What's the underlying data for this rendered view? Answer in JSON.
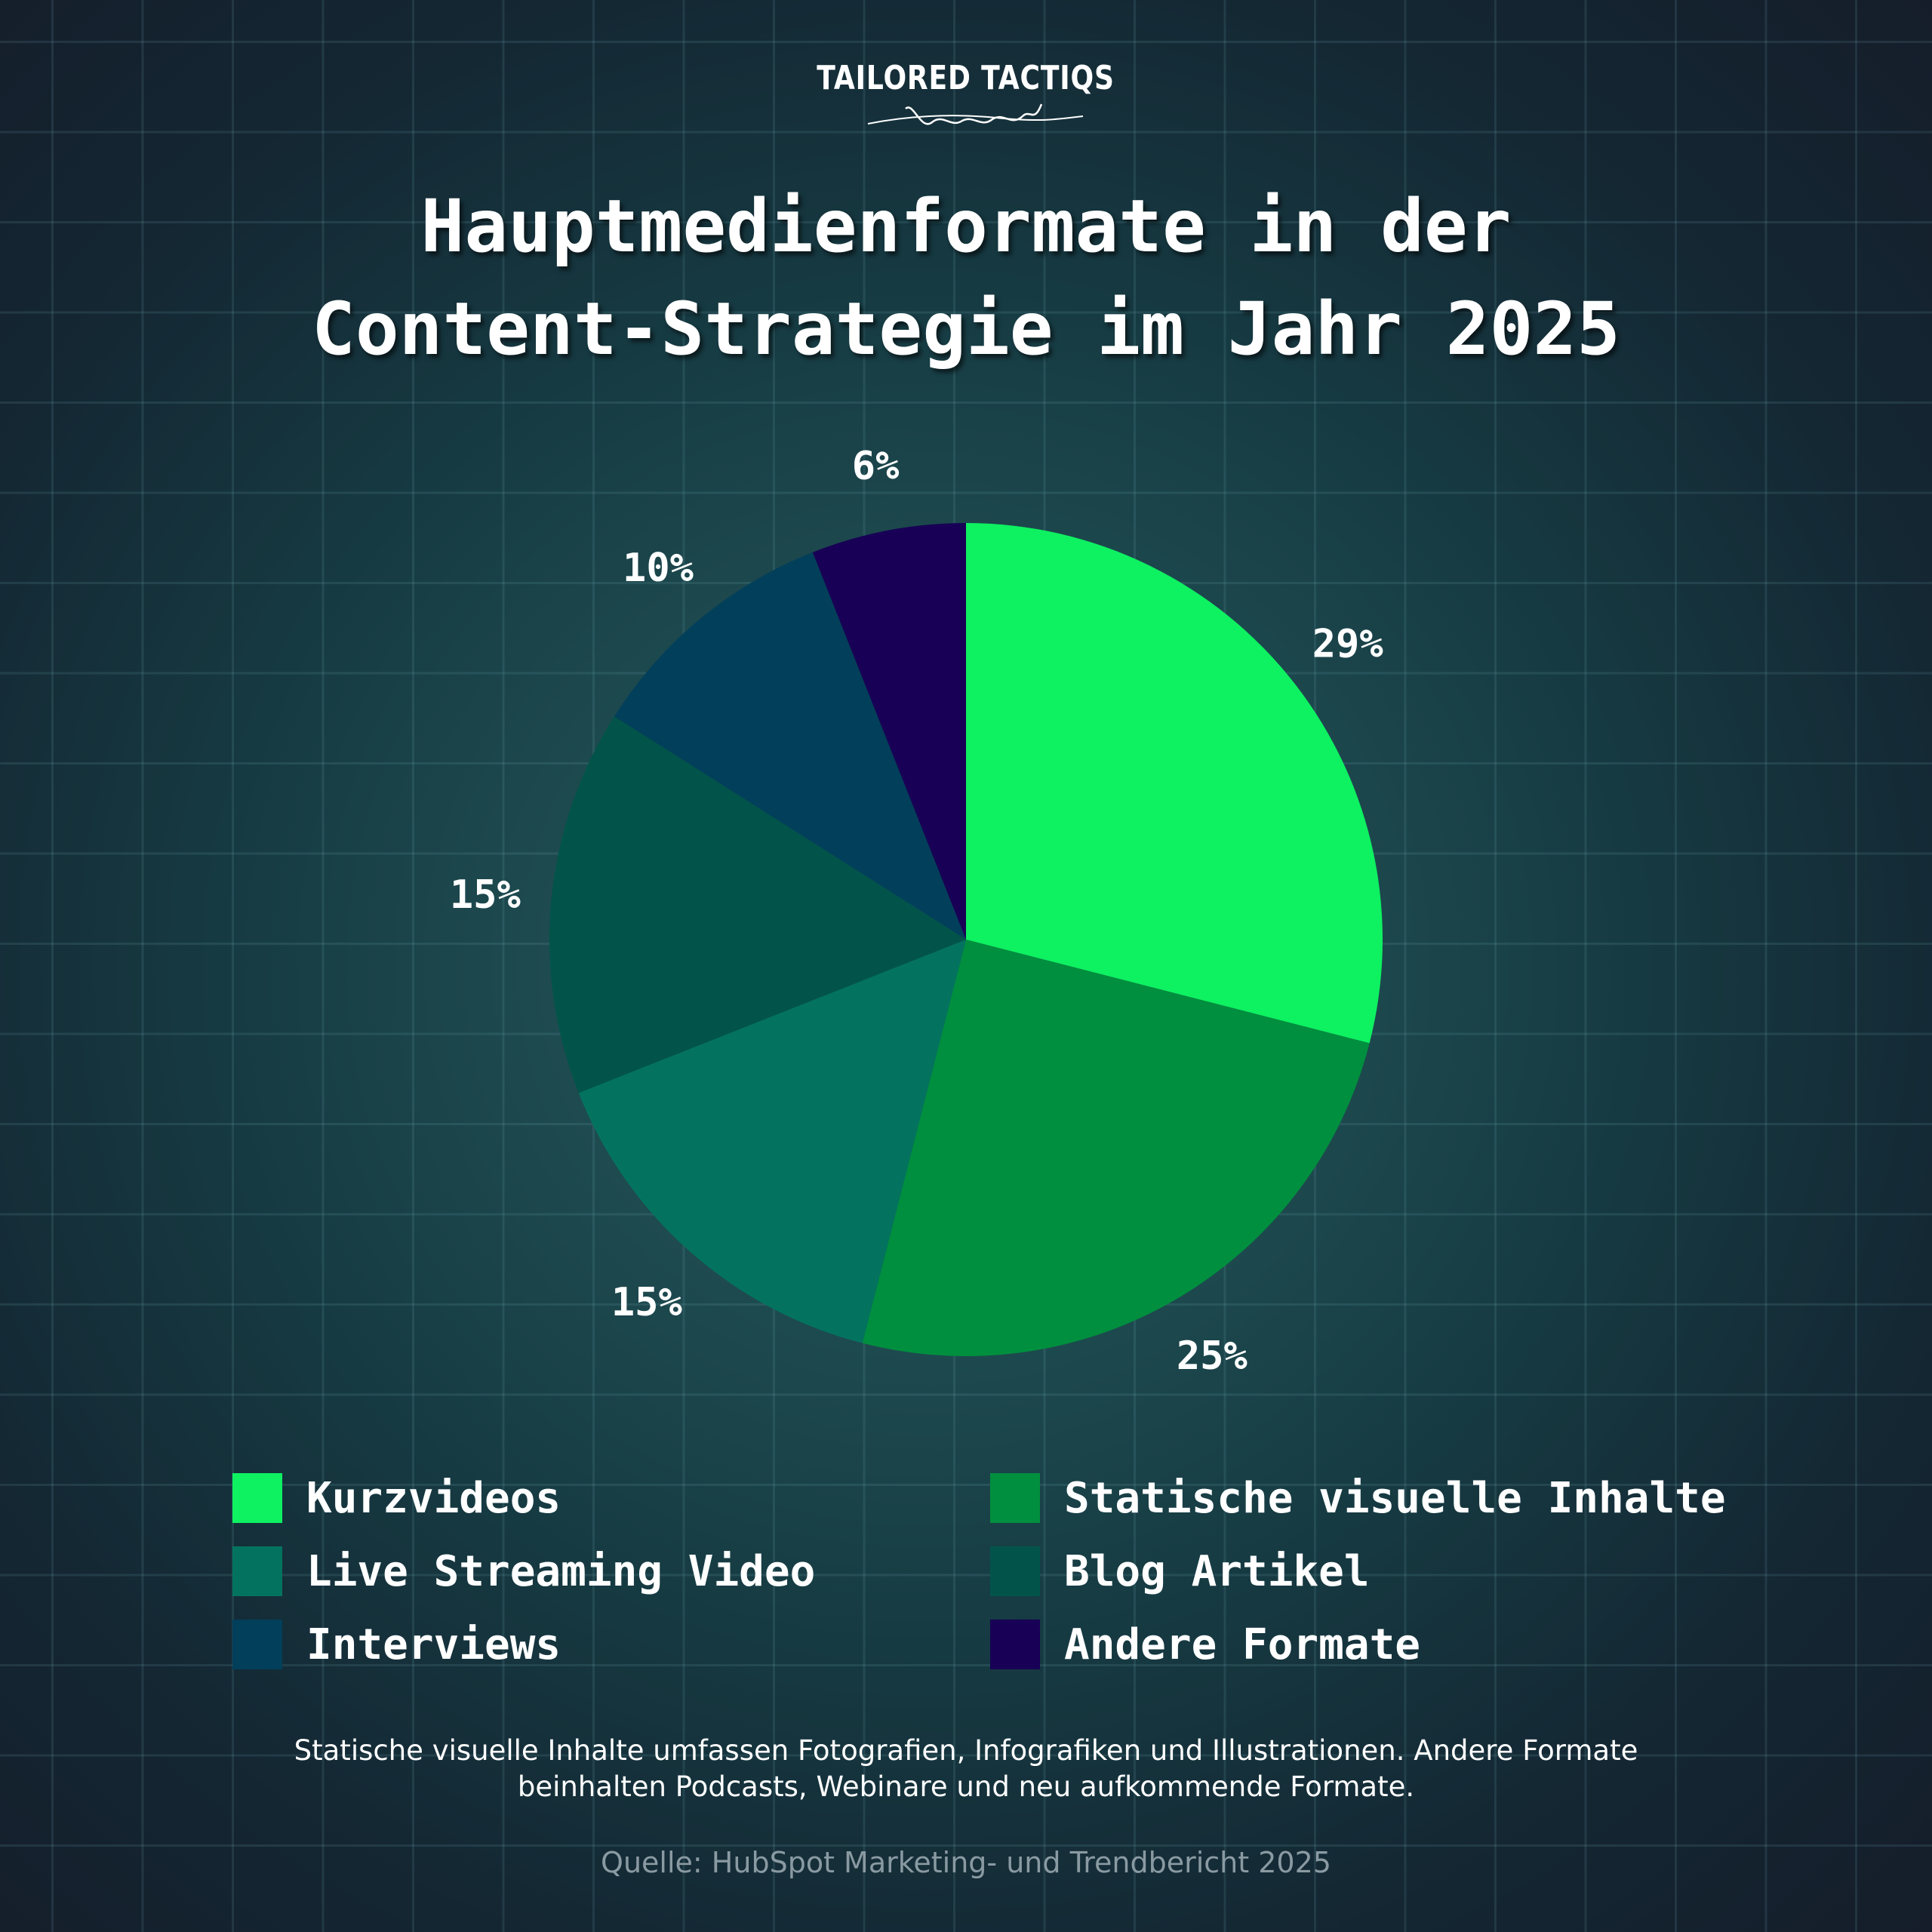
{
  "logo": {
    "text": "TAILORED TACTIQS",
    "signature": "Dennis Quast"
  },
  "title": {
    "line1": "Hauptmedienformate in der",
    "line2": "Content-Strategie im Jahr 2025"
  },
  "chart_data": {
    "type": "pie",
    "title": "Hauptmedienformate in der Content-Strategie im Jahr 2025",
    "start": "12 o'clock, clockwise",
    "label_format": "percent",
    "slices": [
      {
        "name": "Kurzvideos",
        "value": 29,
        "label": "29%",
        "color": "#0ef161"
      },
      {
        "name": "Statische visuelle Inhalte",
        "value": 25,
        "label": "25%",
        "color": "#008f3e"
      },
      {
        "name": "Live Streaming Video",
        "value": 15,
        "label": "15%",
        "color": "#03735f"
      },
      {
        "name": "Blog Artikel",
        "value": 15,
        "label": "15%",
        "color": "#02544a"
      },
      {
        "name": "Interviews",
        "value": 10,
        "label": "10%",
        "color": "#023f5a"
      },
      {
        "name": "Andere Formate",
        "value": 6,
        "label": "6%",
        "color": "#170055"
      }
    ],
    "legend_placement": "bottom, two columns"
  },
  "legend": [
    {
      "label": "Kurzvideos",
      "color": "#0ef161"
    },
    {
      "label": "Statische visuelle Inhalte",
      "color": "#008f3e"
    },
    {
      "label": "Live Streaming Video",
      "color": "#03735f"
    },
    {
      "label": "Blog Artikel",
      "color": "#02544a"
    },
    {
      "label": "Interviews",
      "color": "#023f5a"
    },
    {
      "label": "Andere Formate",
      "color": "#170055"
    }
  ],
  "note": {
    "line1": "Statische visuelle Inhalte umfassen Fotografien, Infografiken und Illustrationen. Andere Formate",
    "line2": "beinhalten Podcasts, Webinare und neu aufkommende Formate."
  },
  "source": "Quelle: HubSpot Marketing- und Trendbericht 2025"
}
